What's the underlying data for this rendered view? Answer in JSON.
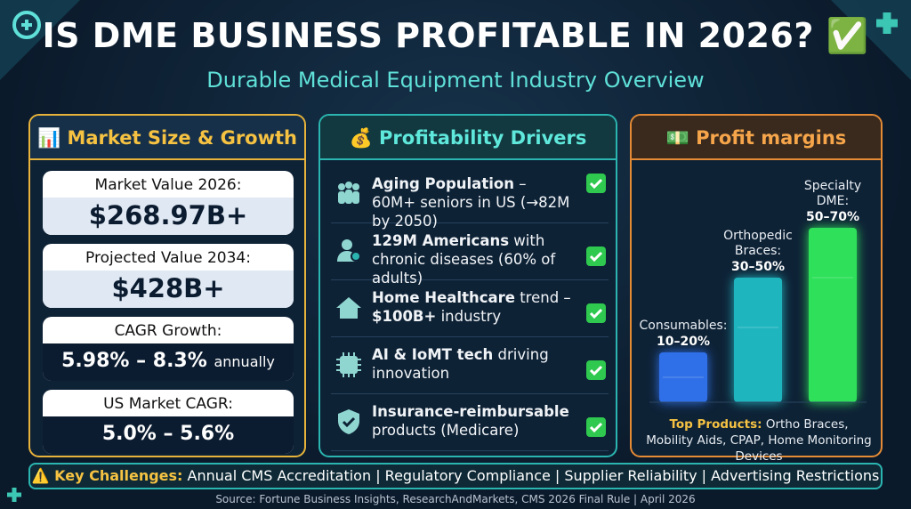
{
  "header": {
    "title": "IS DME BUSINESS PROFITABLE IN 2026? ✅",
    "subtitle": "Durable Medical Equipment Industry Overview"
  },
  "market": {
    "title": "📊 Market Size & Growth",
    "cards": [
      {
        "label": "Market Value 2026:",
        "value": "$268.97B+"
      },
      {
        "label": "Projected Value 2034:",
        "value": "$428B+"
      },
      {
        "label": "CAGR Growth:",
        "value": "5.98% – 8.3%",
        "suffix": "annually"
      },
      {
        "label": "US Market CAGR:",
        "value": "5.0% – 5.6%"
      }
    ]
  },
  "drivers": {
    "title": "💰 Profitability Drivers",
    "items": [
      {
        "parts": [
          {
            "text": "Aging Population",
            "bold": true
          },
          {
            "text": " – 60M+ seniors in US (→82M by 2050)",
            "bold": false
          }
        ]
      },
      {
        "parts": [
          {
            "text": "129M Americans",
            "bold": true
          },
          {
            "text": " with chronic diseases (60% of adults)",
            "bold": false
          }
        ]
      },
      {
        "parts": [
          {
            "text": "Home Healthcare",
            "bold": true
          },
          {
            "text": " trend – ",
            "bold": false
          },
          {
            "text": "$100B+",
            "bold": true
          },
          {
            "text": " industry",
            "bold": false
          }
        ]
      },
      {
        "parts": [
          {
            "text": "AI & IoMT tech",
            "bold": true
          },
          {
            "text": " driving innovation",
            "bold": false
          }
        ]
      },
      {
        "parts": [
          {
            "text": "Insurance-reimbursable",
            "bold": true
          },
          {
            "text": " products (Medicare)",
            "bold": false
          }
        ]
      }
    ]
  },
  "margins": {
    "title": "💵 Profit margins",
    "bars": [
      {
        "name": "Consumables:",
        "label": "10–20%",
        "low": 10,
        "high": 20,
        "color": "#2f6fe8"
      },
      {
        "name": "Orthopedic Braces:",
        "label": "30–50%",
        "low": 30,
        "high": 50,
        "color": "#1fb5bf"
      },
      {
        "name": "Specialty DME:",
        "label": "50–70%",
        "low": 50,
        "high": 70,
        "color": "#2ee05a"
      }
    ],
    "top_products": {
      "label": "Top Products:",
      "text": "Ortho Braces, Mobility Aids, CPAP, Home Monitoring Devices"
    }
  },
  "challenges": {
    "label": "⚠️ Key Challenges:",
    "text": "Annual CMS Accreditation | Regulatory Compliance | Supplier Reliability | Advertising Restrictions"
  },
  "source": "Source: Fortune Business Insights, ResearchAndMarkets, CMS 2026 Final Rule | April 2026"
}
